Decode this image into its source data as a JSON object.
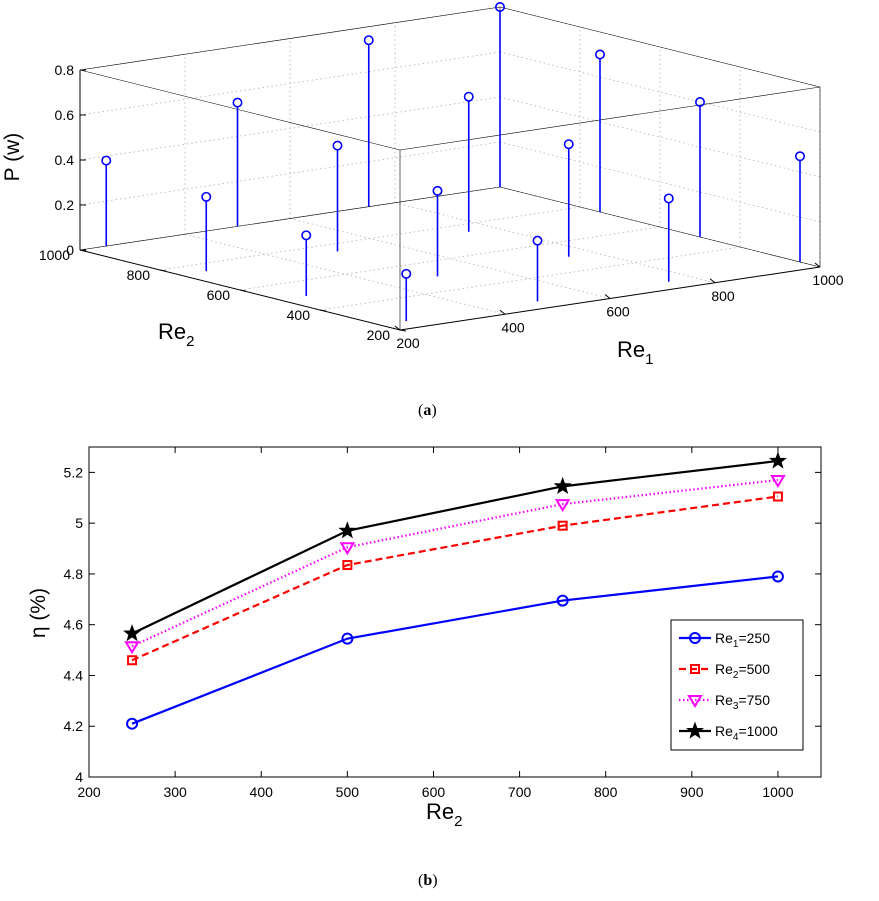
{
  "chart_data": [
    {
      "type": "stem3d",
      "caption_paren_open": "(",
      "caption_letter": "a",
      "caption_paren_close": ")",
      "zlabel": "P (w)",
      "xlabel_base": "Re",
      "xlabel_sub": "1",
      "ylabel_base": "Re",
      "ylabel_sub": "2",
      "z_ticks": [
        "0",
        "0.2",
        "0.4",
        "0.6",
        "0.8"
      ],
      "x_ticks": [
        "200",
        "400",
        "600",
        "800",
        "1000"
      ],
      "y_ticks": [
        "200",
        "400",
        "600",
        "800",
        "1000"
      ],
      "zlim": [
        0,
        0.8
      ],
      "xlim": [
        200,
        1000
      ],
      "ylim": [
        200,
        1000
      ],
      "grid": true,
      "marker": "circle",
      "color": "#0000ff",
      "points": [
        {
          "re1": 250,
          "re2": 250,
          "p": 0.21
        },
        {
          "re1": 250,
          "re2": 500,
          "p": 0.27
        },
        {
          "re1": 250,
          "re2": 750,
          "p": 0.33
        },
        {
          "re1": 250,
          "re2": 1000,
          "p": 0.38
        },
        {
          "re1": 500,
          "re2": 250,
          "p": 0.27
        },
        {
          "re1": 500,
          "re2": 500,
          "p": 0.38
        },
        {
          "re1": 500,
          "re2": 750,
          "p": 0.47
        },
        {
          "re1": 500,
          "re2": 1000,
          "p": 0.55
        },
        {
          "re1": 750,
          "re2": 250,
          "p": 0.37
        },
        {
          "re1": 750,
          "re2": 500,
          "p": 0.5
        },
        {
          "re1": 750,
          "re2": 750,
          "p": 0.6
        },
        {
          "re1": 750,
          "re2": 1000,
          "p": 0.74
        },
        {
          "re1": 1000,
          "re2": 250,
          "p": 0.47
        },
        {
          "re1": 1000,
          "re2": 500,
          "p": 0.6
        },
        {
          "re1": 1000,
          "re2": 750,
          "p": 0.7
        },
        {
          "re1": 1000,
          "re2": 1000,
          "p": 0.8
        }
      ]
    },
    {
      "type": "line",
      "caption_paren_open": "(",
      "caption_letter": "b",
      "caption_paren_close": ")",
      "ylabel": "η (%)",
      "xlabel_base": "Re",
      "xlabel_sub": "2",
      "x": [
        250,
        500,
        750,
        1000
      ],
      "xlim": [
        200,
        1050
      ],
      "ylim": [
        4,
        5.3
      ],
      "x_ticks": [
        200,
        300,
        400,
        500,
        600,
        700,
        800,
        900,
        1000
      ],
      "x_tick_labels": [
        "200",
        "300",
        "400",
        "500",
        "600",
        "700",
        "800",
        "900",
        "1000"
      ],
      "y_ticks": [
        4,
        4.2,
        4.4,
        4.6,
        4.8,
        5,
        5.2
      ],
      "y_tick_labels": [
        "4",
        "4.2",
        "4.4",
        "4.6",
        "4.8",
        "5",
        "5.2"
      ],
      "grid": false,
      "legend_position": "right",
      "series": [
        {
          "name": "Re1=250",
          "legend_base": "Re",
          "legend_sub": "1",
          "legend_val": "=250",
          "values": [
            4.21,
            4.545,
            4.695,
            4.79
          ],
          "color": "#0000ff",
          "style": "solid",
          "marker": "circle"
        },
        {
          "name": "Re2=500",
          "legend_base": "Re",
          "legend_sub": "2",
          "legend_val": "=500",
          "values": [
            4.46,
            4.835,
            4.99,
            5.105
          ],
          "color": "#ff0000",
          "style": "dashed",
          "marker": "square"
        },
        {
          "name": "Re3=750",
          "legend_base": "Re",
          "legend_sub": "3",
          "legend_val": "=750",
          "values": [
            4.515,
            4.905,
            5.075,
            5.17
          ],
          "color": "#ff00ff",
          "style": "dotted",
          "marker": "triangle-down"
        },
        {
          "name": "Re4=1000",
          "legend_base": "Re",
          "legend_sub": "4",
          "legend_val": "=1000",
          "values": [
            4.565,
            4.97,
            5.145,
            5.245
          ],
          "color": "#000000",
          "style": "solid",
          "marker": "star"
        }
      ]
    }
  ]
}
